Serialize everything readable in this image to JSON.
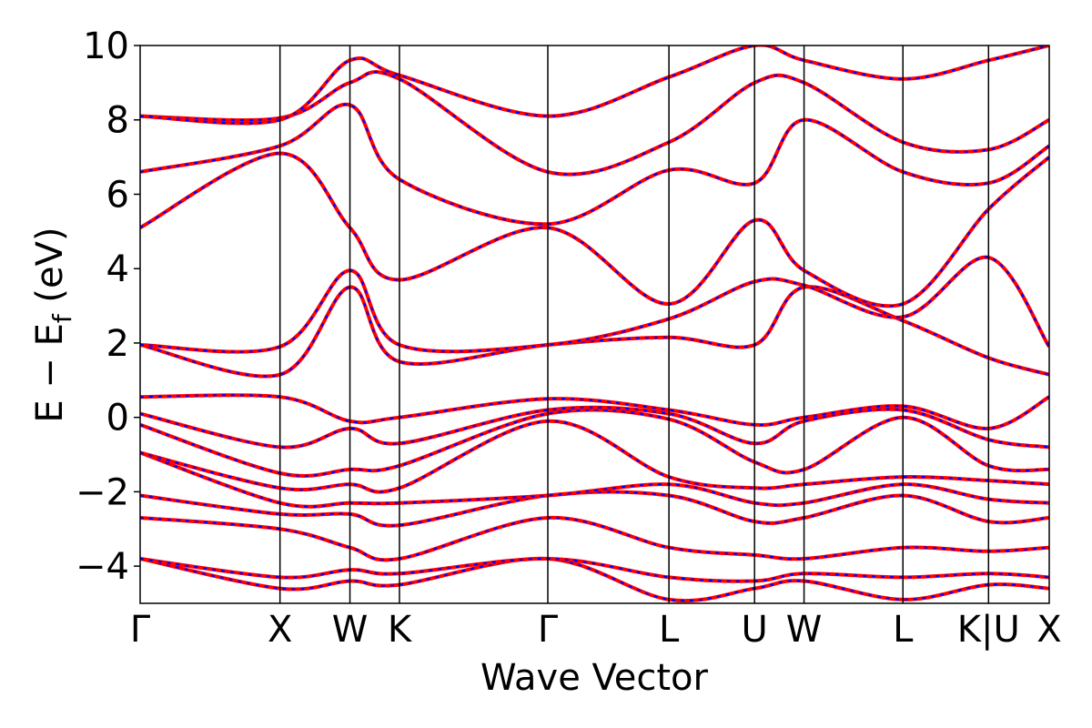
{
  "chart_data": {
    "type": "line",
    "title": "",
    "xlabel": "Wave Vector",
    "ylabel": "E − E",
    "ylabel_subscript": "f",
    "ylabel_unit": "(eV)",
    "ylim": [
      -5,
      10
    ],
    "yticks": [
      -4,
      -2,
      0,
      2,
      4,
      6,
      8,
      10
    ],
    "ytick_labels": [
      "−4",
      "−2",
      "0",
      "2",
      "4",
      "6",
      "8",
      "10"
    ],
    "xlim": [
      0,
      6.5
    ],
    "kpoints": [
      {
        "label": "Γ",
        "x": 0.0
      },
      {
        "label": "X",
        "x": 1.0
      },
      {
        "label": "W",
        "x": 1.5
      },
      {
        "label": "K",
        "x": 1.854
      },
      {
        "label": "Γ",
        "x": 2.915
      },
      {
        "label": "L",
        "x": 3.781
      },
      {
        "label": "U",
        "x": 4.393
      },
      {
        "label": "W",
        "x": 4.747
      },
      {
        "label": "L",
        "x": 5.454
      },
      {
        "label": "K|U",
        "x": 6.066
      },
      {
        "label": "X",
        "x": 6.5
      }
    ],
    "grid": false,
    "legend": "none",
    "series_style": [
      {
        "color": "#ff0000",
        "style": "solid"
      },
      {
        "color": "#0000ff",
        "style": "dashed"
      }
    ],
    "bands": [
      [
        [
          0,
          -3.8
        ],
        [
          1,
          -4.6
        ],
        [
          1.5,
          -4.4
        ],
        [
          1.854,
          -4.5
        ],
        [
          2.915,
          -3.8
        ],
        [
          3.781,
          -4.9
        ],
        [
          4.393,
          -4.6
        ],
        [
          4.747,
          -4.4
        ],
        [
          5.454,
          -4.9
        ],
        [
          6.066,
          -4.5
        ],
        [
          6.5,
          -4.6
        ]
      ],
      [
        [
          0,
          -3.8
        ],
        [
          1,
          -4.3
        ],
        [
          1.5,
          -4.1
        ],
        [
          1.854,
          -4.2
        ],
        [
          2.915,
          -3.8
        ],
        [
          3.781,
          -4.3
        ],
        [
          4.393,
          -4.4
        ],
        [
          4.747,
          -4.2
        ],
        [
          5.454,
          -4.3
        ],
        [
          6.066,
          -4.2
        ],
        [
          6.5,
          -4.3
        ]
      ],
      [
        [
          0,
          -2.7
        ],
        [
          1,
          -3.0
        ],
        [
          1.5,
          -3.5
        ],
        [
          1.854,
          -3.8
        ],
        [
          2.915,
          -2.7
        ],
        [
          3.781,
          -3.5
        ],
        [
          4.393,
          -3.7
        ],
        [
          4.747,
          -3.8
        ],
        [
          5.454,
          -3.5
        ],
        [
          6.066,
          -3.6
        ],
        [
          6.5,
          -3.5
        ]
      ],
      [
        [
          0,
          -2.1
        ],
        [
          1,
          -2.6
        ],
        [
          1.5,
          -2.6
        ],
        [
          1.854,
          -2.9
        ],
        [
          2.915,
          -2.1
        ],
        [
          3.781,
          -2.1
        ],
        [
          4.393,
          -2.8
        ],
        [
          4.747,
          -2.7
        ],
        [
          5.454,
          -2.1
        ],
        [
          6.066,
          -2.8
        ],
        [
          6.5,
          -2.7
        ]
      ],
      [
        [
          0,
          -0.95
        ],
        [
          1,
          -2.3
        ],
        [
          1.5,
          -2.3
        ],
        [
          1.854,
          -2.3
        ],
        [
          2.915,
          -2.1
        ],
        [
          3.781,
          -1.8
        ],
        [
          4.393,
          -2.3
        ],
        [
          4.747,
          -2.3
        ],
        [
          5.454,
          -1.8
        ],
        [
          6.066,
          -2.2
        ],
        [
          6.5,
          -2.3
        ]
      ],
      [
        [
          0,
          -0.95
        ],
        [
          1,
          -1.9
        ],
        [
          1.5,
          -1.8
        ],
        [
          1.854,
          -1.9
        ],
        [
          2.915,
          -0.1
        ],
        [
          3.781,
          -1.6
        ],
        [
          4.393,
          -1.9
        ],
        [
          4.747,
          -1.8
        ],
        [
          5.454,
          -1.6
        ],
        [
          6.066,
          -1.7
        ],
        [
          6.5,
          -1.8
        ]
      ],
      [
        [
          0,
          -0.2
        ],
        [
          1,
          -1.5
        ],
        [
          1.5,
          -1.4
        ],
        [
          1.854,
          -1.3
        ],
        [
          2.915,
          0.1
        ],
        [
          3.781,
          -0.05
        ],
        [
          4.393,
          -1.2
        ],
        [
          4.747,
          -1.4
        ],
        [
          5.454,
          0.0
        ],
        [
          6.066,
          -1.3
        ],
        [
          6.5,
          -1.4
        ]
      ],
      [
        [
          0,
          0.1
        ],
        [
          1,
          -0.8
        ],
        [
          1.5,
          -0.3
        ],
        [
          1.854,
          -0.7
        ],
        [
          2.915,
          0.2
        ],
        [
          3.781,
          0.1
        ],
        [
          4.393,
          -0.7
        ],
        [
          4.747,
          -0.1
        ],
        [
          5.454,
          0.2
        ],
        [
          6.066,
          -0.6
        ],
        [
          6.5,
          -0.8
        ]
      ],
      [
        [
          0,
          0.55
        ],
        [
          1,
          0.55
        ],
        [
          1.5,
          -0.1
        ],
        [
          1.854,
          0.0
        ],
        [
          2.915,
          0.5
        ],
        [
          3.781,
          0.2
        ],
        [
          4.393,
          -0.2
        ],
        [
          4.747,
          0.0
        ],
        [
          5.454,
          0.3
        ],
        [
          6.066,
          -0.3
        ],
        [
          6.5,
          0.55
        ]
      ],
      [
        [
          0,
          1.95
        ],
        [
          1,
          1.15
        ],
        [
          1.5,
          3.5
        ],
        [
          1.854,
          1.5
        ],
        [
          2.915,
          1.95
        ],
        [
          3.781,
          2.15
        ],
        [
          4.393,
          1.95
        ],
        [
          4.747,
          3.5
        ],
        [
          5.454,
          2.6
        ],
        [
          6.066,
          1.6
        ],
        [
          6.5,
          1.15
        ]
      ],
      [
        [
          0,
          1.95
        ],
        [
          1,
          1.9
        ],
        [
          1.5,
          3.95
        ],
        [
          1.854,
          1.95
        ],
        [
          2.915,
          1.95
        ],
        [
          3.781,
          2.65
        ],
        [
          4.393,
          3.65
        ],
        [
          4.747,
          3.55
        ],
        [
          5.454,
          2.7
        ],
        [
          6.066,
          4.3
        ],
        [
          6.5,
          1.9
        ]
      ],
      [
        [
          0,
          5.1
        ],
        [
          1,
          7.1
        ],
        [
          1.5,
          5.1
        ],
        [
          1.854,
          3.7
        ],
        [
          2.915,
          5.1
        ],
        [
          3.781,
          3.05
        ],
        [
          4.393,
          5.3
        ],
        [
          4.747,
          3.95
        ],
        [
          5.454,
          3.05
        ],
        [
          6.066,
          5.6
        ],
        [
          6.5,
          7.0
        ]
      ],
      [
        [
          0,
          6.6
        ],
        [
          1,
          7.3
        ],
        [
          1.5,
          8.4
        ],
        [
          1.854,
          6.4
        ],
        [
          2.915,
          5.2
        ],
        [
          3.781,
          6.65
        ],
        [
          4.393,
          6.3
        ],
        [
          4.747,
          8.0
        ],
        [
          5.454,
          6.6
        ],
        [
          6.066,
          6.3
        ],
        [
          6.5,
          7.3
        ]
      ],
      [
        [
          0,
          8.1
        ],
        [
          1,
          8.05
        ],
        [
          1.5,
          9.0
        ],
        [
          1.854,
          9.1
        ],
        [
          2.915,
          6.6
        ],
        [
          3.781,
          7.4
        ],
        [
          4.393,
          9.0
        ],
        [
          4.747,
          9.0
        ],
        [
          5.454,
          7.4
        ],
        [
          6.066,
          7.2
        ],
        [
          6.5,
          8.0
        ]
      ],
      [
        [
          0,
          8.1
        ],
        [
          1,
          8.0
        ],
        [
          1.5,
          9.6
        ],
        [
          1.854,
          9.2
        ],
        [
          2.915,
          8.1
        ],
        [
          3.781,
          9.15
        ],
        [
          4.393,
          10.0
        ],
        [
          4.747,
          9.6
        ],
        [
          5.454,
          9.1
        ],
        [
          6.066,
          9.6
        ],
        [
          6.5,
          10.0
        ]
      ]
    ]
  }
}
